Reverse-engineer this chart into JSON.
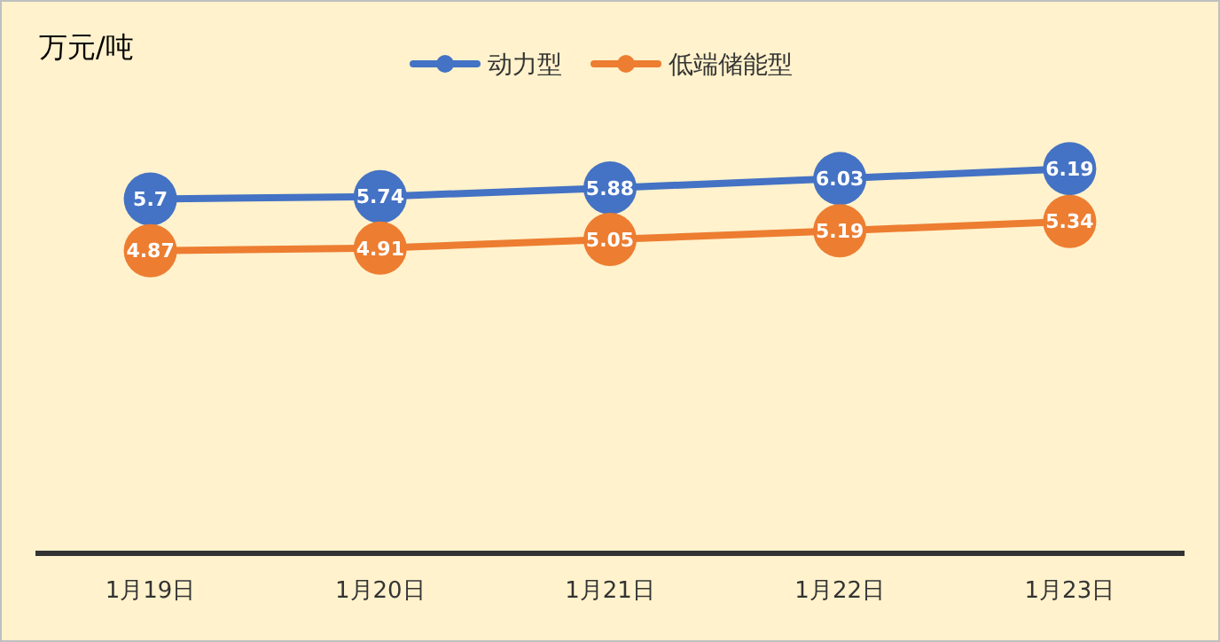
{
  "chart_data": {
    "type": "line",
    "ylabel": "万元/吨",
    "categories": [
      "1月19日",
      "1月20日",
      "1月21日",
      "1月22日",
      "1月23日"
    ],
    "series": [
      {
        "name": "动力型",
        "color": "#4472c4",
        "values": [
          5.7,
          5.74,
          5.88,
          6.03,
          6.19
        ]
      },
      {
        "name": "低端储能型",
        "color": "#ed7d31",
        "values": [
          4.87,
          4.91,
          5.05,
          5.19,
          5.34
        ]
      }
    ],
    "tick_labels": "x",
    "data_labels": true,
    "legend": "top",
    "marker": "circle",
    "line_style": "solid",
    "grid": false
  }
}
